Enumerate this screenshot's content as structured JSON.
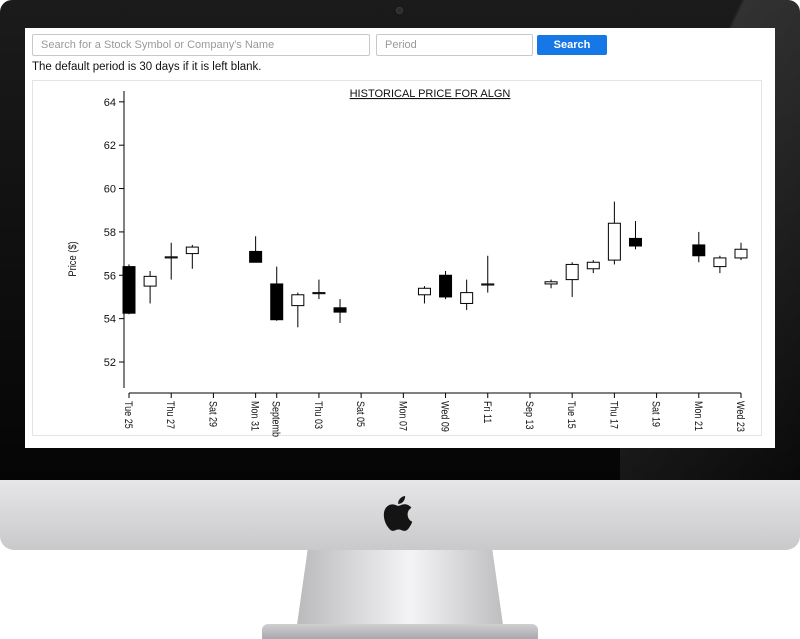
{
  "search": {
    "placeholder": "Search for a Stock Symbol or Company's Name",
    "period_placeholder": "Period",
    "button_label": "Search"
  },
  "hint_text": "The default period is 30 days if it is left blank.",
  "colors": {
    "button": "#1677e6",
    "bearish_candle": "#000000",
    "bullish_candle": "#ffffff",
    "bezel": "#0d0d0d"
  },
  "icons": [
    "apple-logo-icon"
  ],
  "chart_data": {
    "type": "candlestick",
    "title": "HISTORICAL PRICE FOR ALGN",
    "ylabel": "Price ($)",
    "xlabel": "",
    "ylim": [
      50.8,
      64.5
    ],
    "yticks": [
      52,
      54,
      56,
      58,
      60,
      62,
      64
    ],
    "xticks": [
      {
        "day": 0,
        "label": "Tue 25"
      },
      {
        "day": 2,
        "label": "Thu 27"
      },
      {
        "day": 4,
        "label": "Sat 29"
      },
      {
        "day": 6,
        "label": "Mon 31"
      },
      {
        "day": 7,
        "label": "September"
      },
      {
        "day": 9,
        "label": "Thu 03"
      },
      {
        "day": 11,
        "label": "Sat 05"
      },
      {
        "day": 13,
        "label": "Mon 07"
      },
      {
        "day": 15,
        "label": "Wed 09"
      },
      {
        "day": 17,
        "label": "Fri 11"
      },
      {
        "day": 19,
        "label": "Sep 13"
      },
      {
        "day": 21,
        "label": "Tue 15"
      },
      {
        "day": 23,
        "label": "Thu 17"
      },
      {
        "day": 25,
        "label": "Sat 19"
      },
      {
        "day": 27,
        "label": "Mon 21"
      },
      {
        "day": 29,
        "label": "Wed 23"
      }
    ],
    "candles": [
      {
        "day": 0,
        "open": 56.4,
        "high": 56.5,
        "low": 54.2,
        "close": 54.25
      },
      {
        "day": 1,
        "open": 55.5,
        "high": 56.2,
        "low": 54.7,
        "close": 55.95
      },
      {
        "day": 2,
        "open": 56.8,
        "high": 57.5,
        "low": 55.8,
        "close": 56.85
      },
      {
        "day": 3,
        "open": 57.0,
        "high": 57.4,
        "low": 56.3,
        "close": 57.3
      },
      {
        "day": 6,
        "open": 57.1,
        "high": 57.8,
        "low": 56.6,
        "close": 56.6
      },
      {
        "day": 7,
        "open": 55.6,
        "high": 56.4,
        "low": 53.9,
        "close": 53.95
      },
      {
        "day": 8,
        "open": 54.6,
        "high": 55.2,
        "low": 53.6,
        "close": 55.1
      },
      {
        "day": 9,
        "open": 55.15,
        "high": 55.8,
        "low": 54.9,
        "close": 55.2
      },
      {
        "day": 10,
        "open": 54.5,
        "high": 54.9,
        "low": 53.8,
        "close": 54.3
      },
      {
        "day": 14,
        "open": 55.1,
        "high": 55.5,
        "low": 54.7,
        "close": 55.4
      },
      {
        "day": 15,
        "open": 56.0,
        "high": 56.2,
        "low": 54.9,
        "close": 55.0
      },
      {
        "day": 16,
        "open": 54.7,
        "high": 55.8,
        "low": 54.4,
        "close": 55.2
      },
      {
        "day": 17,
        "open": 55.55,
        "high": 56.9,
        "low": 55.2,
        "close": 55.6
      },
      {
        "day": 20,
        "open": 55.6,
        "high": 55.8,
        "low": 55.4,
        "close": 55.7
      },
      {
        "day": 21,
        "open": 55.8,
        "high": 56.6,
        "low": 55.0,
        "close": 56.5
      },
      {
        "day": 22,
        "open": 56.3,
        "high": 56.7,
        "low": 56.1,
        "close": 56.6
      },
      {
        "day": 23,
        "open": 56.7,
        "high": 59.4,
        "low": 56.5,
        "close": 58.4
      },
      {
        "day": 24,
        "open": 57.7,
        "high": 58.5,
        "low": 57.2,
        "close": 57.35
      },
      {
        "day": 27,
        "open": 57.4,
        "high": 58.0,
        "low": 56.6,
        "close": 56.9
      },
      {
        "day": 28,
        "open": 56.4,
        "high": 56.9,
        "low": 56.1,
        "close": 56.8
      },
      {
        "day": 29,
        "open": 56.8,
        "high": 57.5,
        "low": 56.7,
        "close": 57.2
      }
    ]
  }
}
